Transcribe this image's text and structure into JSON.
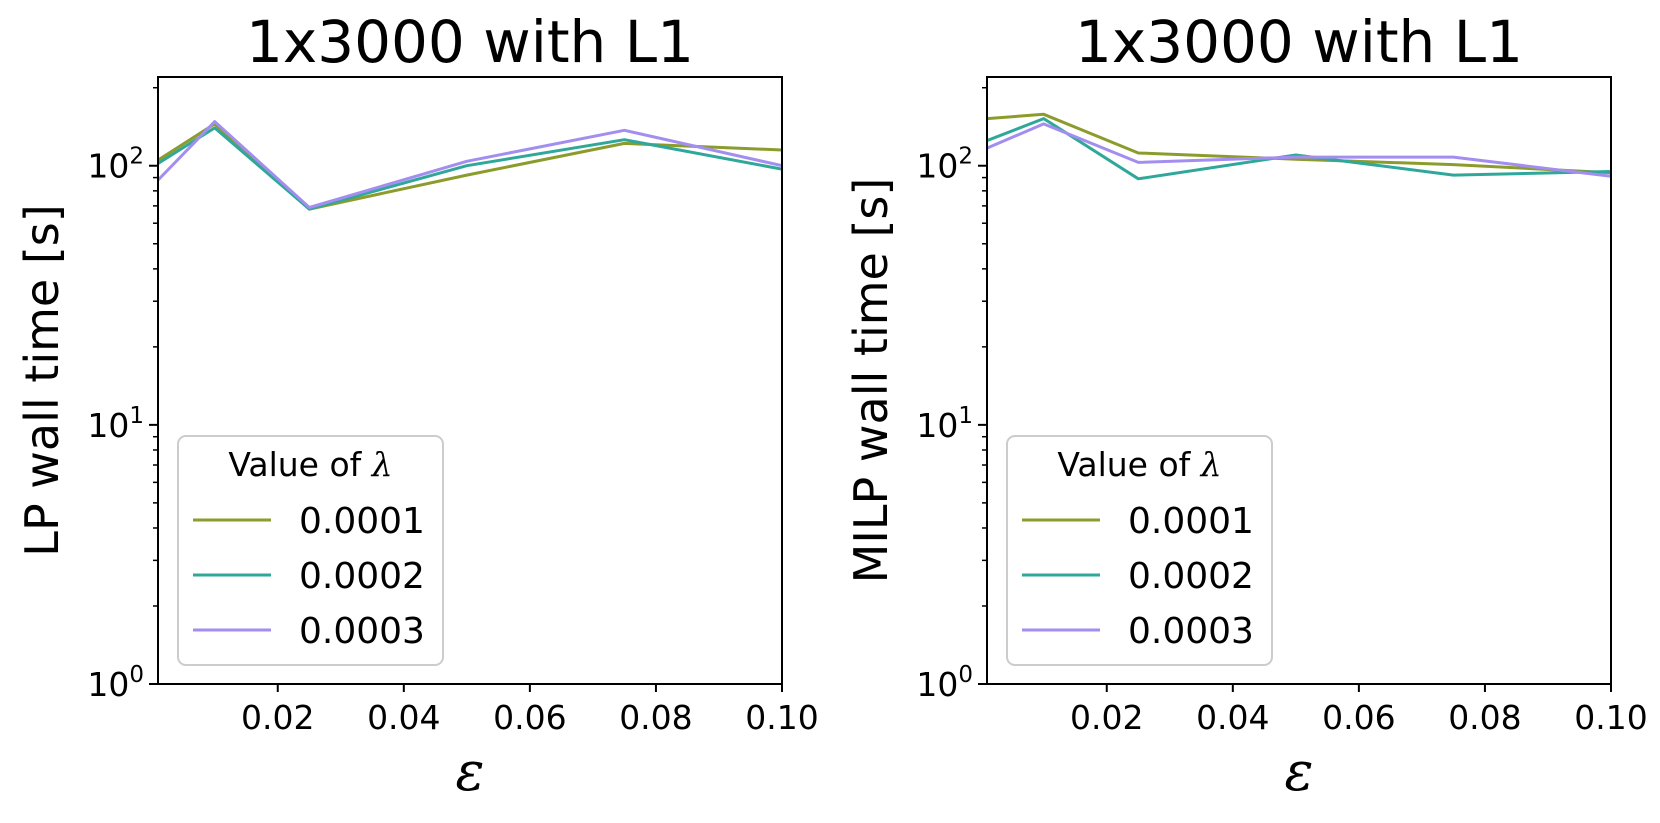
{
  "colors": {
    "series": [
      "#8c9c2c",
      "#2fa89a",
      "#a38ef0"
    ],
    "axis": "#000000",
    "legend_border": "#cccccc"
  },
  "chart_data": [
    {
      "type": "line",
      "title": "1x3000 with L1",
      "xlabel": "ε",
      "ylabel": "LP wall time [s]",
      "yscale": "log",
      "xlim": [
        0.001,
        0.1
      ],
      "ylim": [
        1,
        220
      ],
      "xticks": [
        0.02,
        0.04,
        0.06,
        0.08,
        0.1
      ],
      "xtick_labels": [
        "0.02",
        "0.04",
        "0.06",
        "0.08",
        "0.10"
      ],
      "yticks": [
        {
          "value": 1,
          "base": "10",
          "exp": "0"
        },
        {
          "value": 10,
          "base": "10",
          "exp": "1"
        },
        {
          "value": 100,
          "base": "10",
          "exp": "2"
        }
      ],
      "legend": {
        "title_text": "Value of ",
        "title_symbol": "λ",
        "position": "lower-left"
      },
      "series": [
        {
          "name": "0.0001",
          "x": [
            0.001,
            0.01,
            0.025,
            0.05,
            0.075,
            0.1
          ],
          "y": [
            105,
            145,
            68,
            92,
            122,
            115
          ]
        },
        {
          "name": "0.0002",
          "x": [
            0.001,
            0.01,
            0.025,
            0.05,
            0.075,
            0.1
          ],
          "y": [
            102,
            140,
            68,
            100,
            126,
            97
          ]
        },
        {
          "name": "0.0003",
          "x": [
            0.001,
            0.01,
            0.025,
            0.05,
            0.075,
            0.1
          ],
          "y": [
            88,
            148,
            69,
            104,
            137,
            100
          ]
        }
      ]
    },
    {
      "type": "line",
      "title": "1x3000 with L1",
      "xlabel": "ε",
      "ylabel": "MILP wall time [s]",
      "yscale": "log",
      "xlim": [
        0.001,
        0.1
      ],
      "ylim": [
        1,
        220
      ],
      "xticks": [
        0.02,
        0.04,
        0.06,
        0.08,
        0.1
      ],
      "xtick_labels": [
        "0.02",
        "0.04",
        "0.06",
        "0.08",
        "0.10"
      ],
      "yticks": [
        {
          "value": 1,
          "base": "10",
          "exp": "0"
        },
        {
          "value": 10,
          "base": "10",
          "exp": "1"
        },
        {
          "value": 100,
          "base": "10",
          "exp": "2"
        }
      ],
      "legend": {
        "title_text": "Value of ",
        "title_symbol": "λ",
        "position": "lower-left"
      },
      "series": [
        {
          "name": "0.0001",
          "x": [
            0.001,
            0.01,
            0.025,
            0.05,
            0.075,
            0.1
          ],
          "y": [
            152,
            158,
            112,
            106,
            101,
            94
          ]
        },
        {
          "name": "0.0002",
          "x": [
            0.001,
            0.01,
            0.025,
            0.05,
            0.075,
            0.1
          ],
          "y": [
            125,
            152,
            89,
            110,
            92,
            95
          ]
        },
        {
          "name": "0.0003",
          "x": [
            0.001,
            0.01,
            0.025,
            0.05,
            0.075,
            0.1
          ],
          "y": [
            117,
            145,
            103,
            108,
            108,
            91
          ]
        }
      ]
    }
  ]
}
